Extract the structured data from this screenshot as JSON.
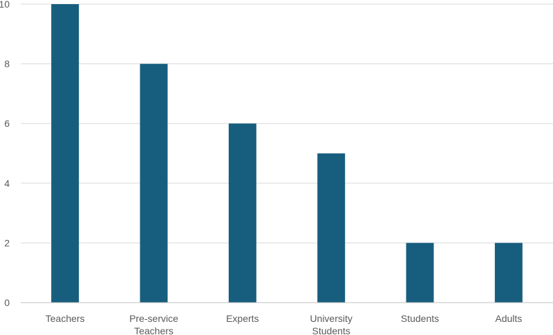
{
  "chart_data": {
    "type": "bar",
    "categories": [
      "Teachers",
      "Pre-service Teachers",
      "Experts",
      "University Students",
      "Students",
      "Adults"
    ],
    "category_label_lines": [
      [
        "Teachers"
      ],
      [
        "Pre-service",
        "Teachers"
      ],
      [
        "Experts"
      ],
      [
        "University",
        "Students"
      ],
      [
        "Students"
      ],
      [
        "Adults"
      ]
    ],
    "values": [
      10,
      8,
      6,
      5,
      2,
      2
    ],
    "ylim": [
      0,
      10
    ],
    "yticks": [
      0,
      2,
      4,
      6,
      8,
      10
    ],
    "title": "",
    "xlabel": "",
    "ylabel": "",
    "grid": true,
    "legend": "none",
    "bar_color": "#175e7e"
  }
}
